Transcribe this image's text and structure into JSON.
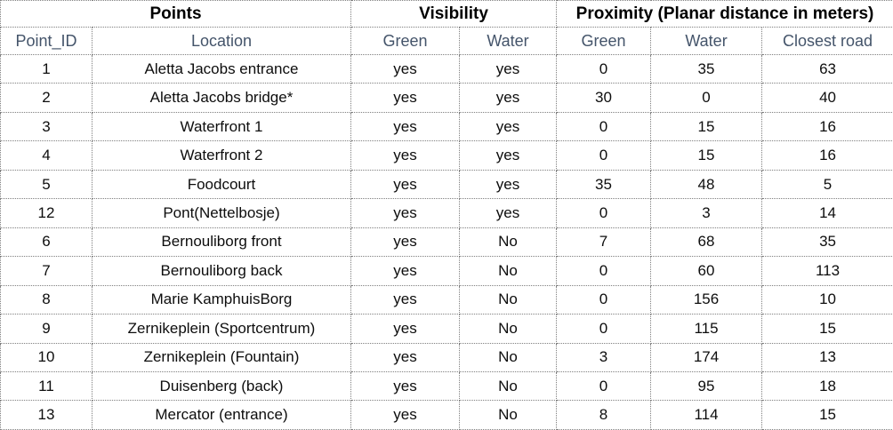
{
  "colors": {
    "water_yes_fill": "#c6e0b4",
    "water_no_fill": "#f8cbad",
    "column_header_text": "#44546a",
    "border": "#7f7f7f",
    "group_header_text": "#000000",
    "cell_text": "#0d0d0d"
  },
  "chart_data": {
    "type": "table",
    "title": "",
    "group_headers": [
      {
        "label": "Points",
        "colspan": 2
      },
      {
        "label": "Visibility",
        "colspan": 2
      },
      {
        "label": "Proximity (Planar distance in meters)",
        "colspan": 3
      }
    ],
    "columns": [
      "Point_ID",
      "Location",
      "Green",
      "Water",
      "Green",
      "Water",
      "Closest road"
    ],
    "rows": [
      [
        "1",
        "Aletta Jacobs entrance",
        "yes",
        "yes",
        "0",
        "35",
        "63"
      ],
      [
        "2",
        "Aletta Jacobs bridge*",
        "yes",
        "yes",
        "30",
        "0",
        "40"
      ],
      [
        "3",
        "Waterfront 1",
        "yes",
        "yes",
        "0",
        "15",
        "16"
      ],
      [
        "4",
        "Waterfront 2",
        "yes",
        "yes",
        "0",
        "15",
        "16"
      ],
      [
        "5",
        "Foodcourt",
        "yes",
        "yes",
        "35",
        "48",
        "5"
      ],
      [
        "12",
        "Pont(Nettelbosje)",
        "yes",
        "yes",
        "0",
        "3",
        "14"
      ],
      [
        "6",
        "Bernouliborg front",
        "yes",
        "No",
        "7",
        "68",
        "35"
      ],
      [
        "7",
        "Bernouliborg back",
        "yes",
        "No",
        "0",
        "60",
        "113"
      ],
      [
        "8",
        "Marie KamphuisBorg",
        "yes",
        "No",
        "0",
        "156",
        "10"
      ],
      [
        "9",
        "Zernikeplein (Sportcentrum)",
        "yes",
        "No",
        "0",
        "115",
        "15"
      ],
      [
        "10",
        "Zernikeplein (Fountain)",
        "yes",
        "No",
        "3",
        "174",
        "13"
      ],
      [
        "11",
        "Duisenberg (back)",
        "yes",
        "No",
        "0",
        "95",
        "18"
      ],
      [
        "13",
        "Mercator (entrance)",
        "yes",
        "No",
        "8",
        "114",
        "15"
      ]
    ]
  }
}
